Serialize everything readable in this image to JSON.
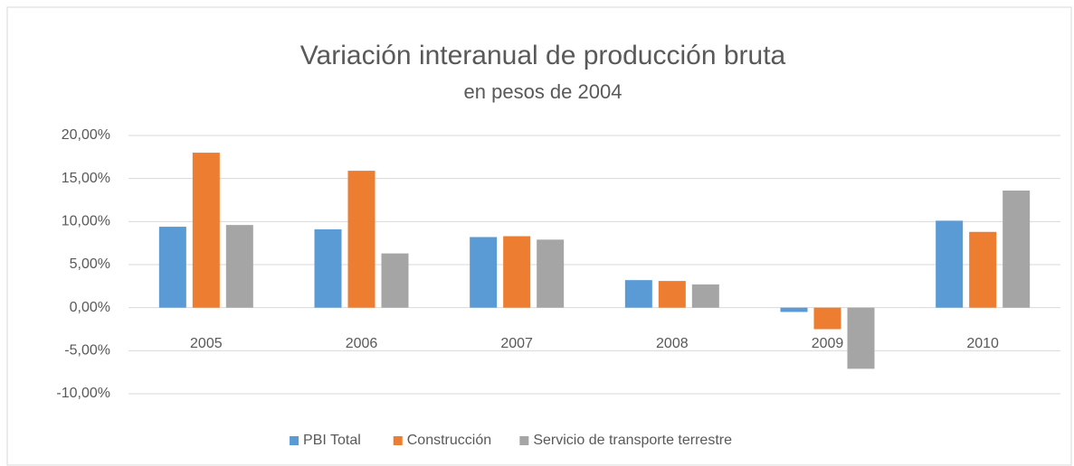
{
  "chart_data": {
    "type": "bar",
    "title": "Variación interanual de producción bruta",
    "subtitle": "en pesos de 2004",
    "categories": [
      "2005",
      "2006",
      "2007",
      "2008",
      "2009",
      "2010"
    ],
    "series": [
      {
        "name": "PBI Total",
        "color": "#5b9bd5",
        "values": [
          9.4,
          9.1,
          8.2,
          3.2,
          -0.5,
          10.1
        ]
      },
      {
        "name": "Construcción",
        "color": "#ed7d31",
        "values": [
          18.0,
          15.9,
          8.3,
          3.1,
          -2.5,
          8.8
        ]
      },
      {
        "name": "Servicio de transporte terrestre",
        "color": "#a5a5a5",
        "values": [
          9.6,
          6.3,
          7.9,
          2.7,
          -7.1,
          13.6
        ]
      }
    ],
    "ylim": [
      -10,
      20
    ],
    "yticks": [
      {
        "value": -10,
        "label": "-10,00%"
      },
      {
        "value": -5,
        "label": "-5,00%"
      },
      {
        "value": 0,
        "label": "0,00%"
      },
      {
        "value": 5,
        "label": "5,00%"
      },
      {
        "value": 10,
        "label": "10,00%"
      },
      {
        "value": 15,
        "label": "15,00%"
      },
      {
        "value": 20,
        "label": "20,00%"
      }
    ],
    "grid": true,
    "legend": "bottom"
  }
}
